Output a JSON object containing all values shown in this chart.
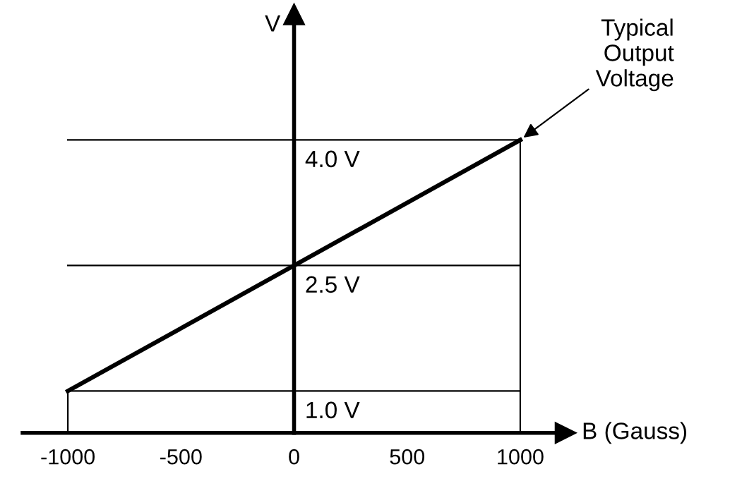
{
  "chart_data": {
    "type": "line",
    "xlabel": "B (Gauss)",
    "ylabel": "V",
    "x": [
      -1000,
      1000
    ],
    "series": [
      {
        "color": "#000000",
        "values": [
          1.0,
          4.0
        ]
      }
    ],
    "xlim": [
      -1200,
      1200
    ],
    "xticks": [
      -1000,
      -500,
      0,
      500,
      1000
    ],
    "ylim": [
      0.5,
      5.5
    ],
    "tick_labels": "x",
    "marker": "none",
    "line_style": "solid",
    "ref_lines": [
      {
        "axis": "y",
        "value": 4.0,
        "label": "4.0 V",
        "color": "#000000"
      },
      {
        "axis": "y",
        "value": 2.5,
        "label": "2.5 V",
        "color": "#000000"
      },
      {
        "axis": "y",
        "value": 1.0,
        "label": "1.0 V",
        "color": "#000000"
      },
      {
        "axis": "x",
        "value": -1000,
        "color": "#000000"
      },
      {
        "axis": "x",
        "value": 1000,
        "color": "#000000"
      }
    ],
    "annotations": [
      {
        "text": "Typical\nOutput\nVoltage",
        "x": 1000,
        "y": 4.0
      }
    ]
  }
}
